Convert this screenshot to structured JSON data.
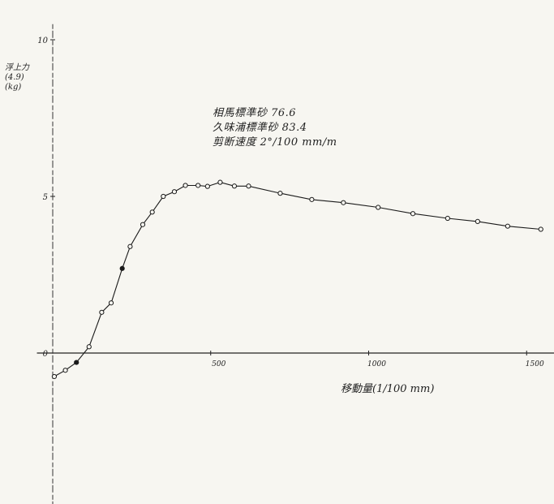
{
  "chart_data": {
    "type": "line",
    "title": "",
    "xlabel": "移動量(1/100 mm)",
    "ylabel": "浮上力(4.9)(kg)",
    "xlim": [
      -50,
      1550
    ],
    "ylim": [
      -5,
      10.5
    ],
    "x_ticks": [
      {
        "value": 500,
        "label": "500"
      },
      {
        "value": 1000,
        "label": "1000"
      },
      {
        "value": 1500,
        "label": "1500"
      }
    ],
    "y_ticks": [
      {
        "value": 0,
        "label": "0"
      },
      {
        "value": 5,
        "label": "5"
      },
      {
        "value": 10,
        "label": "10"
      }
    ],
    "series": [
      {
        "x": [
          5,
          40,
          75,
          115,
          155,
          185,
          220,
          245,
          285,
          315,
          350,
          385,
          420,
          460,
          490,
          530,
          575,
          620,
          720,
          820,
          920,
          1030,
          1140,
          1250,
          1345,
          1440,
          1545
        ],
        "y": [
          -0.75,
          -0.55,
          -0.3,
          0.2,
          1.3,
          1.6,
          2.7,
          3.4,
          4.1,
          4.5,
          5.0,
          5.15,
          5.35,
          5.35,
          5.32,
          5.45,
          5.33,
          5.33,
          5.1,
          4.9,
          4.8,
          4.65,
          4.45,
          4.3,
          4.2,
          4.05,
          3.95
        ],
        "filled": [
          false,
          false,
          true,
          false,
          false,
          false,
          true,
          false,
          false,
          false,
          false,
          false,
          false,
          false,
          false,
          false,
          false,
          false,
          false,
          false,
          false,
          false,
          false,
          false,
          false,
          false,
          false
        ]
      }
    ],
    "annotations": [
      "相馬標準砂 76.6",
      "久味浦標準砂 83.4",
      "剪断速度 2°/100 mm/m"
    ],
    "grid": false
  }
}
